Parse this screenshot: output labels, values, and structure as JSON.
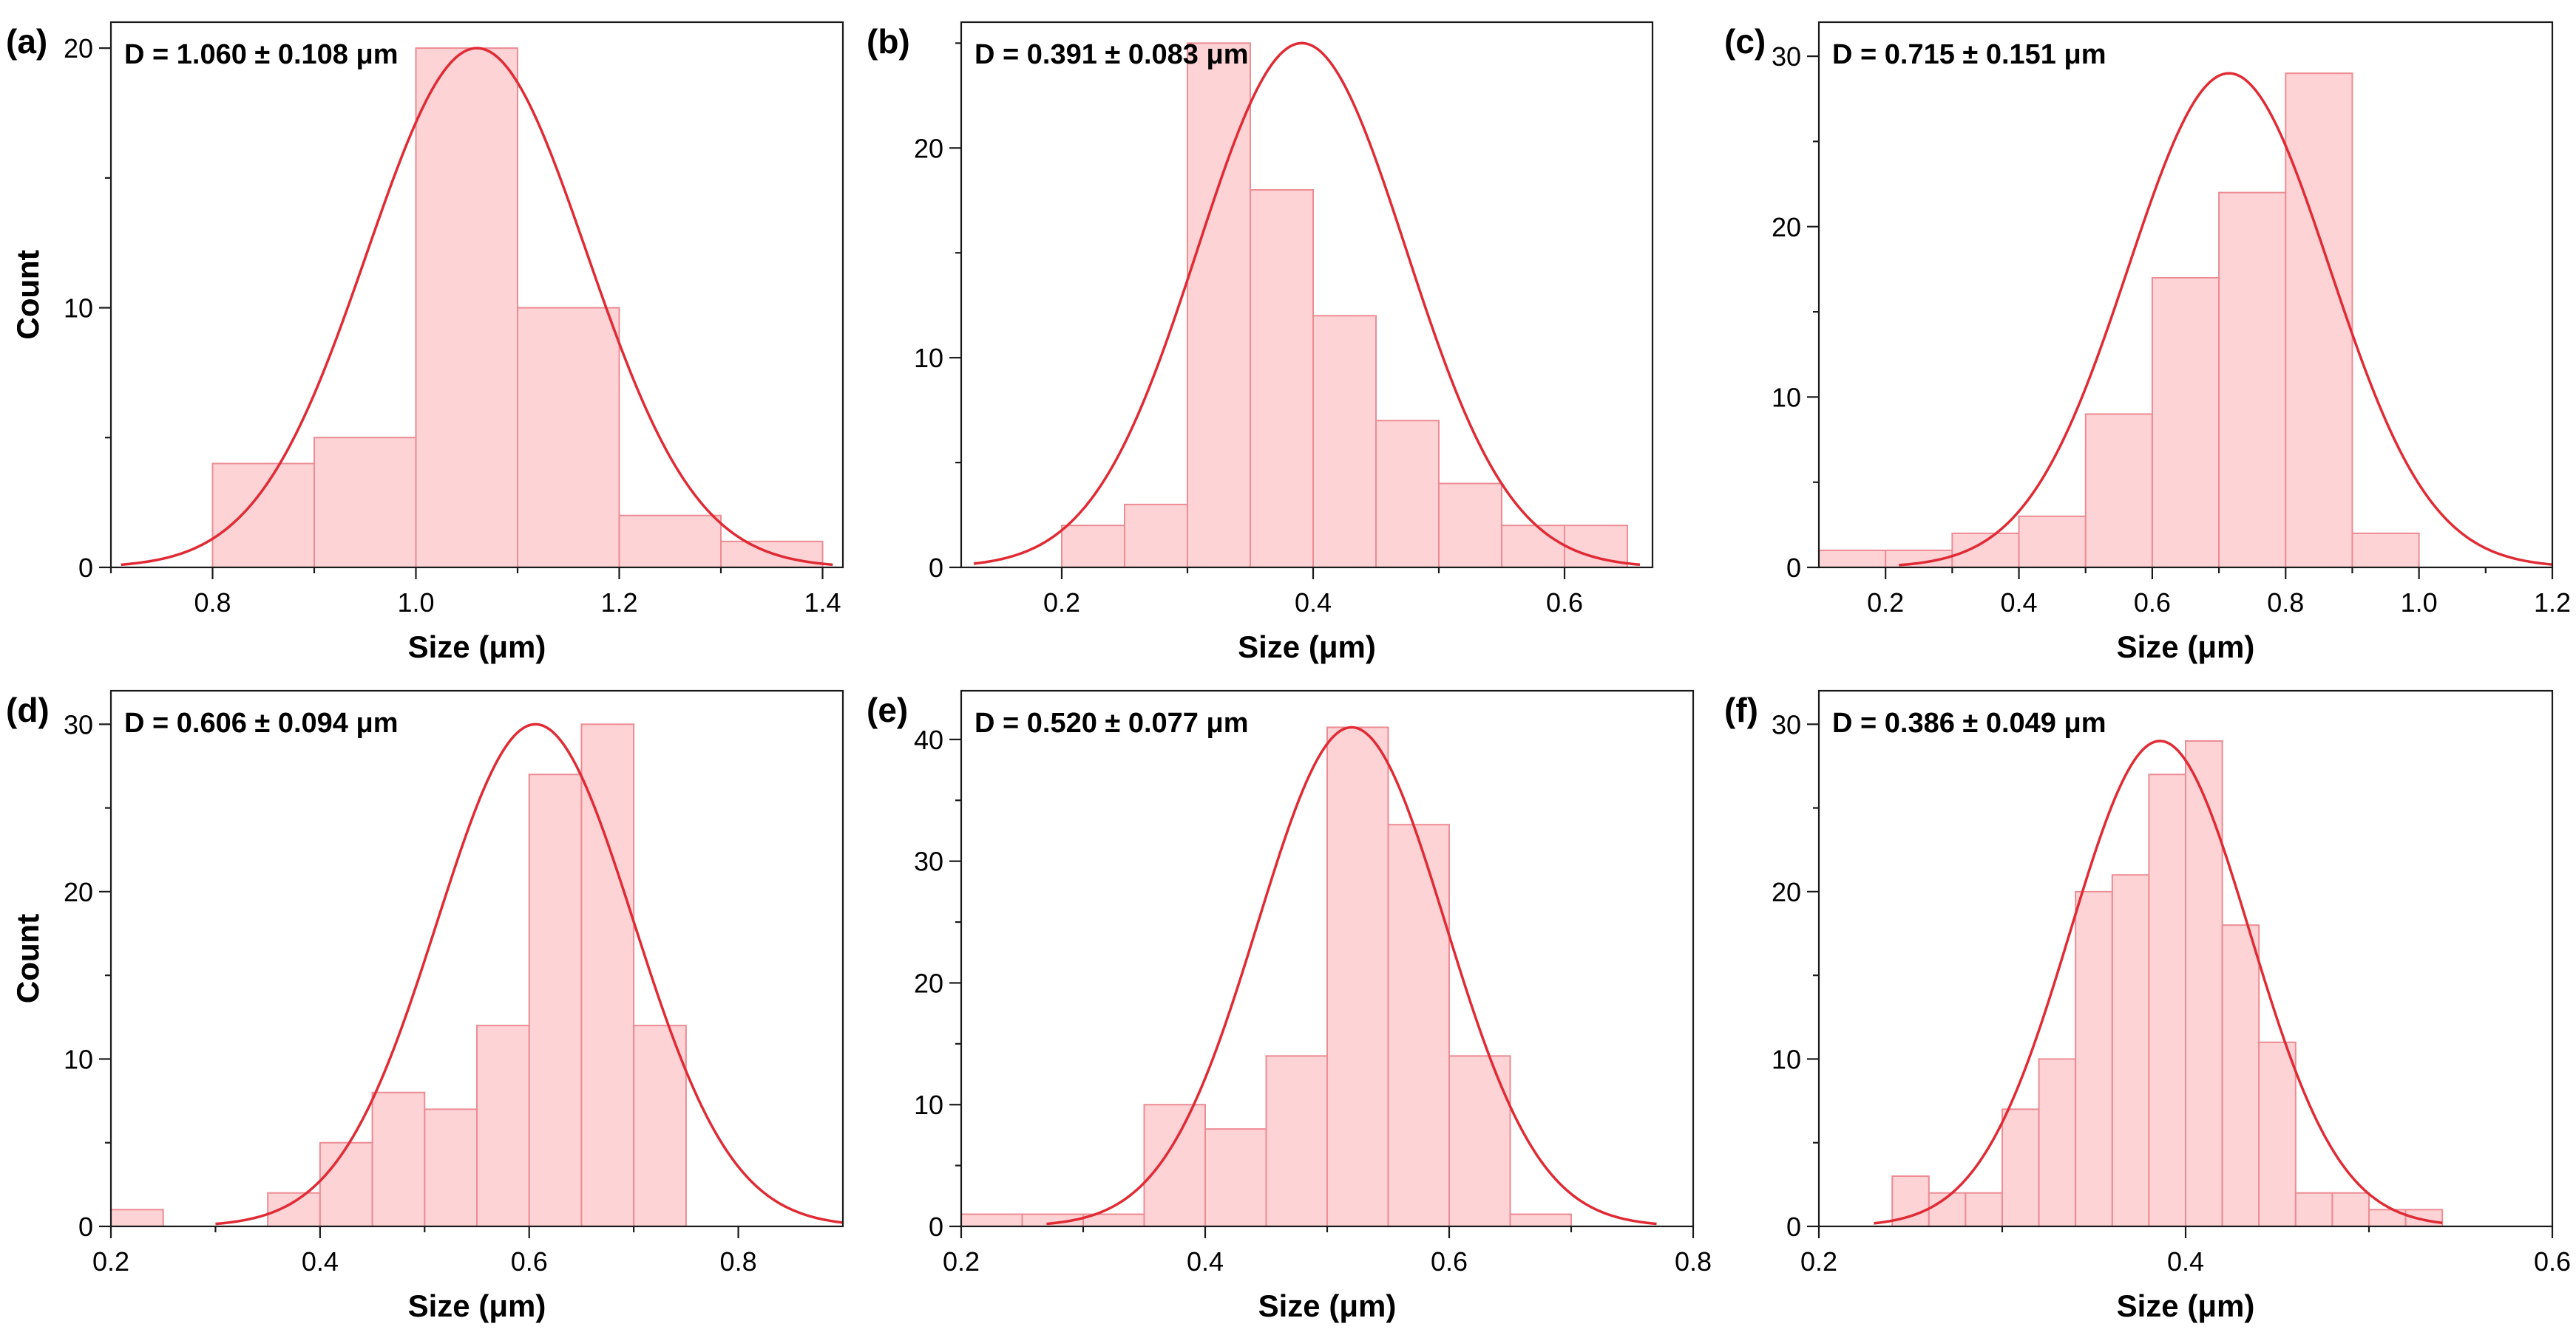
{
  "colors": {
    "bar_fill": "#fdd3d6",
    "bar_stroke": "#ec8c93",
    "fit_line": "#e02b35",
    "axis": "#1a1a1a"
  },
  "chart_data": [
    {
      "panel": "(a)",
      "type": "bar",
      "title": "D = 1.060 ± 0.108 μm",
      "xlabel": "Size (μm)",
      "ylabel": "Count",
      "xlim": [
        0.7,
        1.42
      ],
      "ylim": [
        0,
        21
      ],
      "xticks": [
        0.8,
        1.0,
        1.2,
        1.4
      ],
      "xtick_labels": [
        "0.8",
        "1.0",
        "1.2",
        "1.4"
      ],
      "yticks": [
        0,
        10,
        20
      ],
      "ytick_labels": [
        "0",
        "10",
        "20"
      ],
      "bins": [
        [
          0.8,
          0.9
        ],
        [
          0.9,
          1.0
        ],
        [
          1.0,
          1.1
        ],
        [
          1.1,
          1.2
        ],
        [
          1.2,
          1.3
        ],
        [
          1.3,
          1.4
        ]
      ],
      "values": [
        4,
        5,
        20,
        10,
        2,
        1
      ],
      "fit": {
        "type": "gaussian",
        "mean": 1.06,
        "sigma": 0.108,
        "amplitude": 20,
        "range": [
          0.71,
          1.41
        ]
      }
    },
    {
      "panel": "(b)",
      "type": "bar",
      "title": "D = 0.391 ± 0.083 μm",
      "xlabel": "Size (μm)",
      "ylabel": "Count",
      "xlim": [
        0.12,
        0.67
      ],
      "ylim": [
        0,
        26
      ],
      "xticks": [
        0.2,
        0.4,
        0.6
      ],
      "xtick_labels": [
        "0.2",
        "0.4",
        "0.6"
      ],
      "yticks": [
        0,
        10,
        20
      ],
      "ytick_labels": [
        "0",
        "10",
        "20"
      ],
      "bins": [
        [
          0.2,
          0.25
        ],
        [
          0.25,
          0.3
        ],
        [
          0.3,
          0.35
        ],
        [
          0.35,
          0.4
        ],
        [
          0.4,
          0.45
        ],
        [
          0.45,
          0.5
        ],
        [
          0.5,
          0.55
        ],
        [
          0.55,
          0.6
        ],
        [
          0.6,
          0.65
        ]
      ],
      "values": [
        2,
        3,
        25,
        18,
        12,
        7,
        4,
        2,
        2
      ],
      "fit": {
        "type": "gaussian",
        "mean": 0.391,
        "sigma": 0.083,
        "amplitude": 25,
        "range": [
          0.13,
          0.66
        ]
      }
    },
    {
      "panel": "(c)",
      "type": "bar",
      "title": "D = 0.715 ± 0.151 μm",
      "xlabel": "Size (μm)",
      "ylabel": "Count",
      "xlim": [
        0.1,
        1.2
      ],
      "ylim": [
        0,
        32
      ],
      "xticks": [
        0.2,
        0.4,
        0.6,
        0.8,
        1.0,
        1.2
      ],
      "xtick_labels": [
        "0.2",
        "0.4",
        "0.6",
        "0.8",
        "1.0",
        "1.2"
      ],
      "yticks": [
        0,
        10,
        20,
        30
      ],
      "ytick_labels": [
        "0",
        "10",
        "20",
        "30"
      ],
      "bins": [
        [
          0.1,
          0.2
        ],
        [
          0.2,
          0.3
        ],
        [
          0.3,
          0.4
        ],
        [
          0.4,
          0.5
        ],
        [
          0.5,
          0.6
        ],
        [
          0.6,
          0.7
        ],
        [
          0.7,
          0.8
        ],
        [
          0.8,
          0.9
        ],
        [
          0.9,
          1.0
        ]
      ],
      "values": [
        1,
        1,
        2,
        3,
        9,
        17,
        22,
        29,
        2
      ],
      "fit": {
        "type": "gaussian",
        "mean": 0.715,
        "sigma": 0.151,
        "amplitude": 29,
        "range": [
          0.22,
          1.2
        ]
      }
    },
    {
      "panel": "(d)",
      "type": "bar",
      "title": "D = 0.606 ± 0.094 μm",
      "xlabel": "Size (μm)",
      "ylabel": "Count",
      "xlim": [
        0.2,
        0.9
      ],
      "ylim": [
        0,
        32
      ],
      "xticks": [
        0.2,
        0.4,
        0.6,
        0.8
      ],
      "xtick_labels": [
        "0.2",
        "0.4",
        "0.6",
        "0.8"
      ],
      "yticks": [
        0,
        10,
        20,
        30
      ],
      "ytick_labels": [
        "0",
        "10",
        "20",
        "30"
      ],
      "bins": [
        [
          0.2,
          0.25
        ],
        [
          0.35,
          0.4
        ],
        [
          0.4,
          0.45
        ],
        [
          0.45,
          0.5
        ],
        [
          0.5,
          0.55
        ],
        [
          0.55,
          0.6
        ],
        [
          0.6,
          0.65
        ],
        [
          0.65,
          0.7
        ],
        [
          0.7,
          0.75
        ]
      ],
      "values": [
        1,
        2,
        5,
        8,
        7,
        12,
        27,
        30,
        12
      ],
      "fit": {
        "type": "gaussian",
        "mean": 0.606,
        "sigma": 0.094,
        "amplitude": 30,
        "range": [
          0.3,
          0.9
        ]
      }
    },
    {
      "panel": "(e)",
      "type": "bar",
      "title": "D = 0.520 ± 0.077 μm",
      "xlabel": "Size (μm)",
      "ylabel": "Count",
      "xlim": [
        0.2,
        0.8
      ],
      "ylim": [
        0,
        44
      ],
      "xticks": [
        0.2,
        0.4,
        0.6,
        0.8
      ],
      "xtick_labels": [
        "0.2",
        "0.4",
        "0.6",
        "0.8"
      ],
      "yticks": [
        0,
        10,
        20,
        30,
        40
      ],
      "ytick_labels": [
        "0",
        "10",
        "20",
        "30",
        "40"
      ],
      "bins": [
        [
          0.2,
          0.25
        ],
        [
          0.25,
          0.3
        ],
        [
          0.3,
          0.35
        ],
        [
          0.35,
          0.4
        ],
        [
          0.4,
          0.45
        ],
        [
          0.45,
          0.5
        ],
        [
          0.5,
          0.55
        ],
        [
          0.55,
          0.6
        ],
        [
          0.6,
          0.65
        ],
        [
          0.65,
          0.7
        ]
      ],
      "values": [
        1,
        1,
        1,
        10,
        8,
        14,
        41,
        33,
        14,
        1
      ],
      "fit": {
        "type": "gaussian",
        "mean": 0.52,
        "sigma": 0.077,
        "amplitude": 41,
        "range": [
          0.27,
          0.77
        ]
      }
    },
    {
      "panel": "(f)",
      "type": "bar",
      "title": "D = 0.386 ± 0.049 μm",
      "xlabel": "Size (μm)",
      "ylabel": "Count",
      "xlim": [
        0.2,
        0.6
      ],
      "ylim": [
        0,
        32
      ],
      "xticks": [
        0.2,
        0.4,
        0.6
      ],
      "xtick_labels": [
        "0.2",
        "0.4",
        "0.6"
      ],
      "yticks": [
        0,
        10,
        20,
        30
      ],
      "ytick_labels": [
        "0",
        "10",
        "20",
        "30"
      ],
      "bins": [
        [
          0.24,
          0.26
        ],
        [
          0.26,
          0.28
        ],
        [
          0.28,
          0.3
        ],
        [
          0.3,
          0.32
        ],
        [
          0.32,
          0.34
        ],
        [
          0.34,
          0.36
        ],
        [
          0.36,
          0.38
        ],
        [
          0.38,
          0.4
        ],
        [
          0.4,
          0.42
        ],
        [
          0.42,
          0.44
        ],
        [
          0.44,
          0.46
        ],
        [
          0.46,
          0.48
        ],
        [
          0.48,
          0.5
        ],
        [
          0.5,
          0.52
        ],
        [
          0.52,
          0.54
        ]
      ],
      "values": [
        3,
        2,
        2,
        7,
        10,
        20,
        21,
        27,
        29,
        18,
        11,
        2,
        2,
        1,
        1
      ],
      "fit": {
        "type": "gaussian",
        "mean": 0.386,
        "sigma": 0.049,
        "amplitude": 29,
        "range": [
          0.23,
          0.54
        ]
      }
    }
  ]
}
